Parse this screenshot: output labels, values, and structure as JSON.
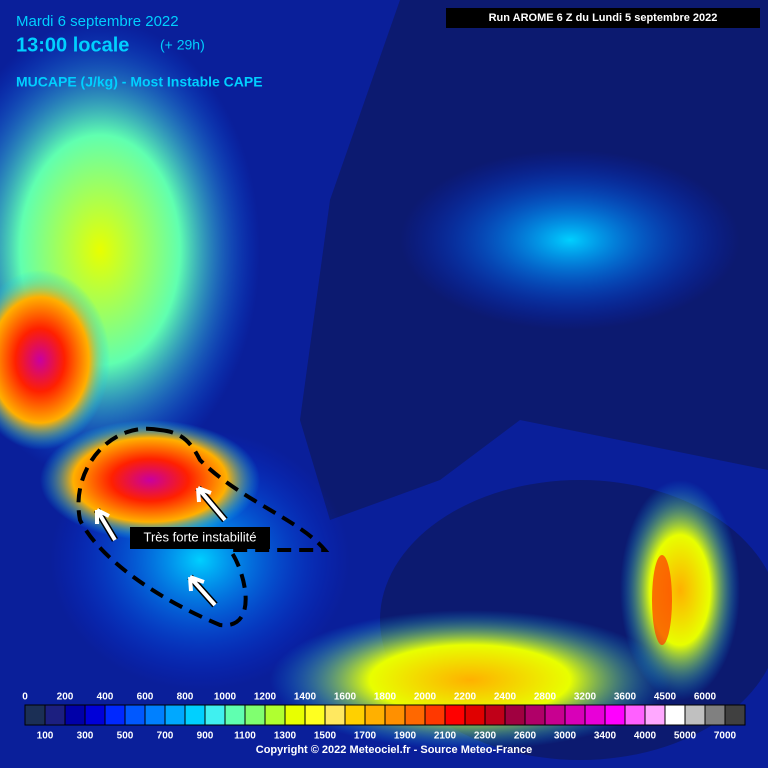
{
  "header": {
    "date": "Mardi 6 septembre 2022",
    "time": "13:00 locale",
    "lead": "(+ 29h)",
    "parameter": "MUCAPE (J/kg) - Most Instable CAPE",
    "run": "Run AROME 6 Z du Lundi 5 septembre 2022"
  },
  "annotation": "Très forte instabilité",
  "legend": {
    "steps": [
      {
        "value": 0,
        "color": "#1b2f55"
      },
      {
        "value": 100,
        "color": "#1c1f80"
      },
      {
        "value": 200,
        "color": "#0000a8"
      },
      {
        "value": 300,
        "color": "#0000d8"
      },
      {
        "value": 400,
        "color": "#0028ff"
      },
      {
        "value": 500,
        "color": "#0058ff"
      },
      {
        "value": 600,
        "color": "#0080ff"
      },
      {
        "value": 700,
        "color": "#00a8ff"
      },
      {
        "value": 800,
        "color": "#00d0ff"
      },
      {
        "value": 900,
        "color": "#40f0f0"
      },
      {
        "value": 1000,
        "color": "#60ffb0"
      },
      {
        "value": 1100,
        "color": "#80ff70"
      },
      {
        "value": 1200,
        "color": "#b0ff30"
      },
      {
        "value": 1300,
        "color": "#e8ff00"
      },
      {
        "value": 1400,
        "color": "#ffff20"
      },
      {
        "value": 1500,
        "color": "#ffe860"
      },
      {
        "value": 1600,
        "color": "#ffd000"
      },
      {
        "value": 1700,
        "color": "#ffb000"
      },
      {
        "value": 1800,
        "color": "#ff9000"
      },
      {
        "value": 1900,
        "color": "#ff6800"
      },
      {
        "value": 2000,
        "color": "#ff3800"
      },
      {
        "value": 2100,
        "color": "#ff0000"
      },
      {
        "value": 2200,
        "color": "#e00000"
      },
      {
        "value": 2300,
        "color": "#c00018"
      },
      {
        "value": 2400,
        "color": "#a00040"
      },
      {
        "value": 2600,
        "color": "#b00068"
      },
      {
        "value": 2800,
        "color": "#c80090"
      },
      {
        "value": 3000,
        "color": "#d800b8"
      },
      {
        "value": 3200,
        "color": "#e800d8"
      },
      {
        "value": 3400,
        "color": "#ff00ff"
      },
      {
        "value": 3600,
        "color": "#ff60ff"
      },
      {
        "value": 4000,
        "color": "#ffa8ff"
      },
      {
        "value": 4500,
        "color": "#ffffff"
      },
      {
        "value": 5000,
        "color": "#c0c0c0"
      },
      {
        "value": 6000,
        "color": "#808080"
      },
      {
        "value": 7000,
        "color": "#404040"
      }
    ]
  },
  "footer": "Copyright © 2022 Meteociel.fr - Source Meteo-France"
}
